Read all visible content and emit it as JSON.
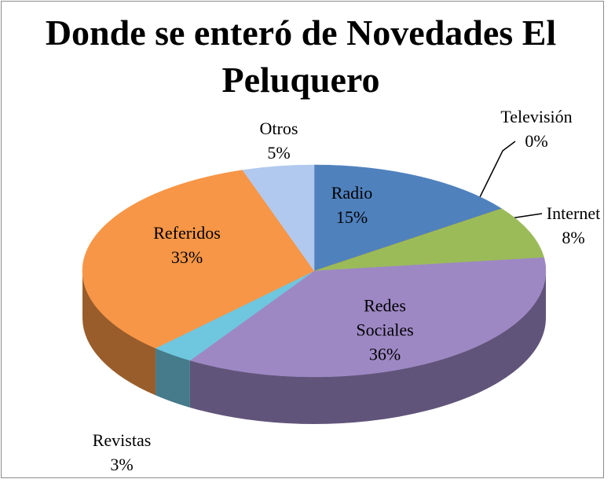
{
  "chart_data": {
    "type": "pie",
    "title": "Donde se enteró de Novedades El Peluquero",
    "categories": [
      "Radio",
      "Televisión",
      "Internet",
      "Redes Sociales",
      "Revistas",
      "Referidos",
      "Otros"
    ],
    "values": [
      15,
      0,
      8,
      36,
      3,
      33,
      5
    ],
    "value_labels": [
      "15%",
      "0%",
      "8%",
      "36%",
      "3%",
      "33%",
      "5%"
    ],
    "colors": [
      "#4f81bd",
      "#c0504d",
      "#9bbb59",
      "#9d88c4",
      "#6fc6df",
      "#f79646",
      "#b1c9ee"
    ]
  }
}
